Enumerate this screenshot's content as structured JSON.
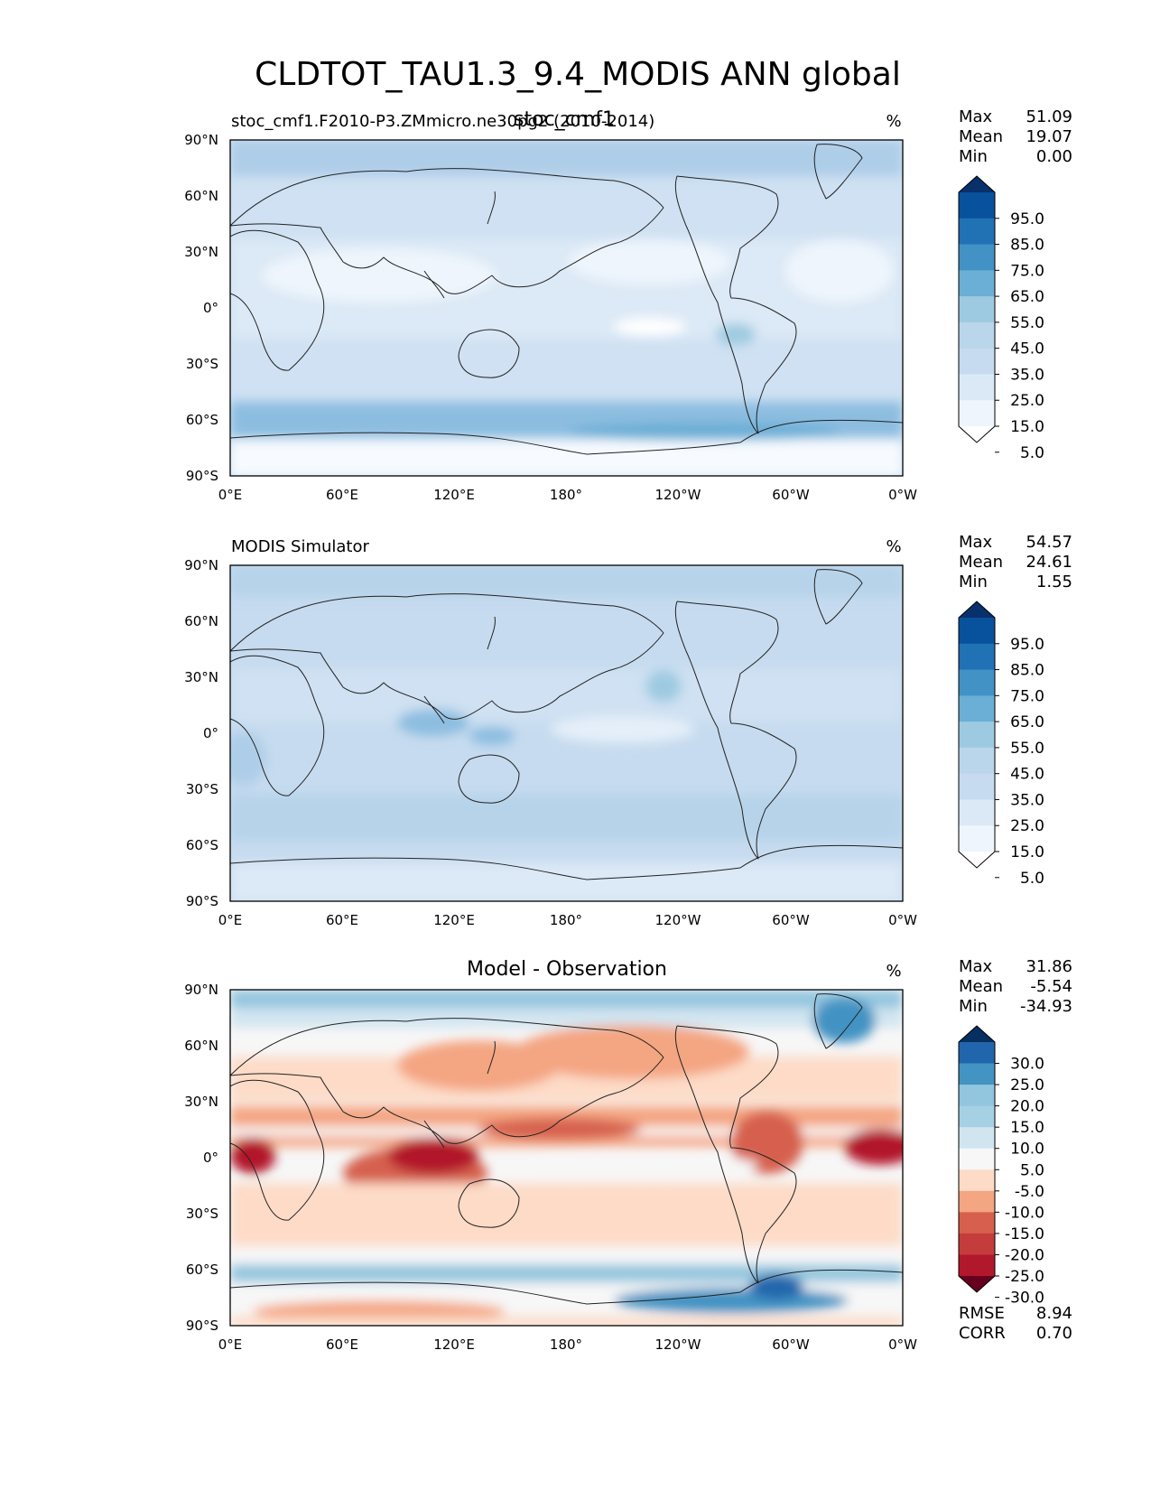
{
  "figure": {
    "title": "CLDTOT_TAU1.3_9.4_MODIS ANN global"
  },
  "axes": {
    "x_ticks": [
      "0°E",
      "60°E",
      "120°E",
      "180°",
      "120°W",
      "60°W",
      "0°W"
    ],
    "y_ticks": [
      "90°N",
      "60°N",
      "30°N",
      "0°",
      "30°S",
      "60°S",
      "90°S"
    ]
  },
  "stat_labels": {
    "max": "Max",
    "mean": "Mean",
    "min": "Min",
    "rmse": "RMSE",
    "corr": "CORR"
  },
  "panels": [
    {
      "left_title": "stoc_cmf1.F2010-P3.ZMmicro.ne30pg2 (2010-2014)",
      "center_title": "stoc_cmf1",
      "units": "%",
      "stats": {
        "max": "51.09",
        "mean": "19.07",
        "min": "0.00"
      },
      "colorbar_labels": [
        "95.0",
        "85.0",
        "75.0",
        "65.0",
        "55.0",
        "45.0",
        "35.0",
        "25.0",
        "15.0",
        "5.0"
      ],
      "colorbar_colors": [
        "#08306b",
        "#08519c",
        "#2171b5",
        "#4292c6",
        "#6baed6",
        "#9ecae1",
        "#bad6ea",
        "#c6dbef",
        "#dbe9f6",
        "#eef5fc",
        "#ffffff"
      ]
    },
    {
      "left_title": "MODIS Simulator",
      "center_title": "",
      "units": "%",
      "stats": {
        "max": "54.57",
        "mean": "24.61",
        "min": "1.55"
      },
      "colorbar_labels": [
        "95.0",
        "85.0",
        "75.0",
        "65.0",
        "55.0",
        "45.0",
        "35.0",
        "25.0",
        "15.0",
        "5.0"
      ],
      "colorbar_colors": [
        "#08306b",
        "#08519c",
        "#2171b5",
        "#4292c6",
        "#6baed6",
        "#9ecae1",
        "#bad6ea",
        "#c6dbef",
        "#dbe9f6",
        "#eef5fc",
        "#ffffff"
      ]
    },
    {
      "left_title": "",
      "center_title": "Model - Observation",
      "units": "%",
      "stats": {
        "max": "31.86",
        "mean": "-5.54",
        "min": "-34.93"
      },
      "colorbar_labels": [
        "30.0",
        "25.0",
        "20.0",
        "15.0",
        "10.0",
        "5.0",
        "-5.0",
        "-10.0",
        "-15.0",
        "-20.0",
        "-25.0",
        "-30.0"
      ],
      "colorbar_colors": [
        "#053061",
        "#2166ac",
        "#4393c3",
        "#92c5de",
        "#a6d0e4",
        "#d1e5f0",
        "#f7f7f7",
        "#fddbc7",
        "#f4a582",
        "#d6604d",
        "#c43c3c",
        "#b2182b",
        "#67001f"
      ],
      "rmse": "8.94",
      "corr": "0.70"
    }
  ],
  "chart_data": [
    {
      "type": "heatmap",
      "title": "stoc_cmf1",
      "units": "%",
      "x_ticks": [
        "0°E",
        "60°E",
        "120°E",
        "180°",
        "120°W",
        "60°W",
        "0°W"
      ],
      "y_ticks": [
        "90°N",
        "60°N",
        "30°N",
        "0°",
        "30°S",
        "60°S",
        "90°S"
      ],
      "stats": {
        "max": 51.09,
        "mean": 19.07,
        "min": 0.0
      },
      "levels": [
        5,
        15,
        25,
        35,
        45,
        55,
        65,
        75,
        85,
        95
      ]
    },
    {
      "type": "heatmap",
      "title": "MODIS Simulator",
      "units": "%",
      "x_ticks": [
        "0°E",
        "60°E",
        "120°E",
        "180°",
        "120°W",
        "60°W",
        "0°W"
      ],
      "y_ticks": [
        "90°N",
        "60°N",
        "30°N",
        "0°",
        "30°S",
        "60°S",
        "90°S"
      ],
      "stats": {
        "max": 54.57,
        "mean": 24.61,
        "min": 1.55
      },
      "levels": [
        5,
        15,
        25,
        35,
        45,
        55,
        65,
        75,
        85,
        95
      ]
    },
    {
      "type": "heatmap",
      "title": "Model - Observation",
      "units": "%",
      "x_ticks": [
        "0°E",
        "60°E",
        "120°E",
        "180°",
        "120°W",
        "60°W",
        "0°W"
      ],
      "y_ticks": [
        "90°N",
        "60°N",
        "30°N",
        "0°",
        "30°S",
        "60°S",
        "90°S"
      ],
      "stats": {
        "max": 31.86,
        "mean": -5.54,
        "min": -34.93,
        "rmse": 8.94,
        "corr": 0.7
      },
      "levels": [
        -30,
        -25,
        -20,
        -15,
        -10,
        -5,
        5,
        10,
        15,
        20,
        25,
        30
      ]
    }
  ]
}
